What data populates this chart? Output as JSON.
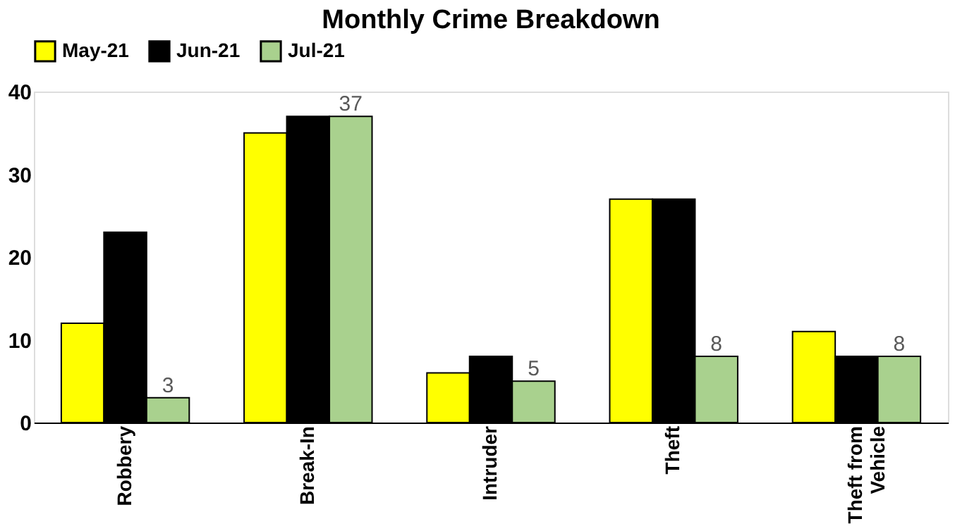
{
  "chart_data": {
    "type": "bar",
    "title": "Monthly Crime Breakdown",
    "categories": [
      "Robbery",
      "Break-In",
      "Intruder",
      "Theft",
      "Theft from Vehicle"
    ],
    "series": [
      {
        "name": "May-21",
        "color": "#ffff00",
        "values": [
          12,
          35,
          6,
          27,
          11
        ]
      },
      {
        "name": "Jun-21",
        "color": "#000000",
        "values": [
          23,
          37,
          8,
          27,
          8
        ]
      },
      {
        "name": "Jul-21",
        "color": "#a9d18e",
        "values": [
          3,
          37,
          5,
          8,
          8
        ],
        "value_labels": [
          "3",
          "37",
          "5",
          "8",
          "8"
        ]
      }
    ],
    "ylim": [
      0,
      40
    ],
    "yticks": [
      0,
      10,
      20,
      30,
      40
    ],
    "grid": false,
    "legend": "top"
  }
}
